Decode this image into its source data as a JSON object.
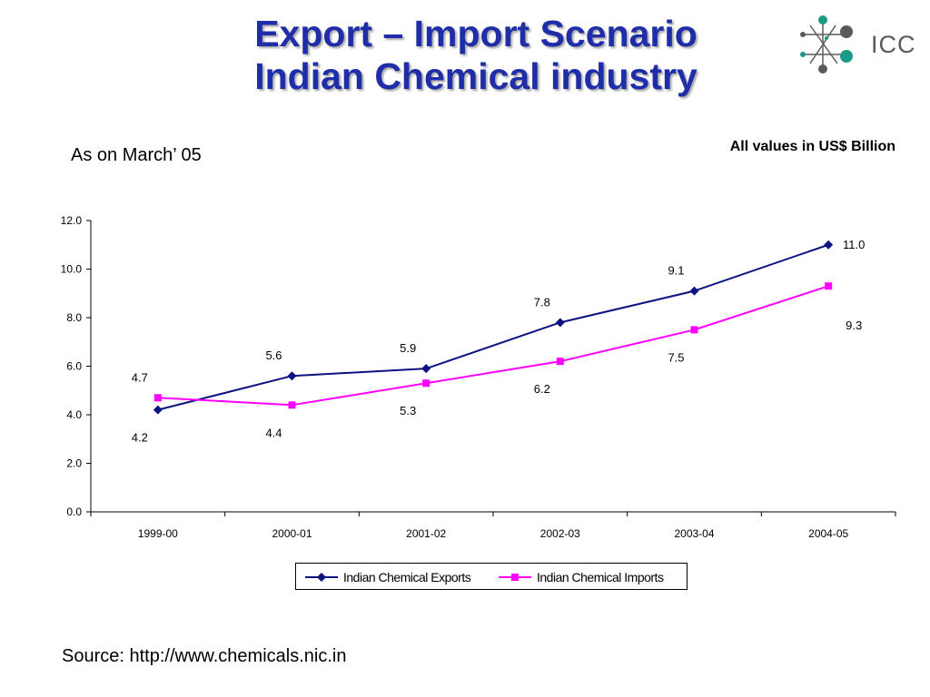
{
  "header": {
    "title_line1": "Export – Import Scenario",
    "title_line2": "Indian Chemical industry",
    "logo_text": "ICC"
  },
  "subtitle": "As on March’ 05",
  "units_note": "All values in US$ Billion",
  "source": "Source: http://www.chemicals.nic.in",
  "colors": {
    "title": "#1f2ea8",
    "exports": "#0c1280",
    "imports": "#ff00ff",
    "logo_gray": "#5a5a5a",
    "logo_teal": "#1a9a86"
  },
  "chart_data": {
    "type": "line",
    "categories": [
      "1999-00",
      "2000-01",
      "2001-02",
      "2002-03",
      "2003-04",
      "2004-05"
    ],
    "series": [
      {
        "name": "Indian Chemical Exports",
        "marker": "diamond",
        "color": "#0c1280",
        "values": [
          4.2,
          5.6,
          5.9,
          7.8,
          9.1,
          11.0
        ],
        "labels": [
          "4.2",
          "5.6",
          "5.9",
          "7.8",
          "9.1",
          "11.0"
        ]
      },
      {
        "name": "Indian Chemical Imports",
        "marker": "square",
        "color": "#ff00ff",
        "values": [
          4.7,
          4.4,
          5.3,
          6.2,
          7.5,
          9.3
        ],
        "labels": [
          "4.7",
          "4.4",
          "5.3",
          "6.2",
          "7.5",
          "9.3"
        ]
      }
    ],
    "yticks": [
      "0.0",
      "2.0",
      "4.0",
      "6.0",
      "8.0",
      "10.0",
      "12.0"
    ],
    "ylim": [
      0,
      12
    ],
    "grid": false,
    "legend_position": "bottom"
  }
}
